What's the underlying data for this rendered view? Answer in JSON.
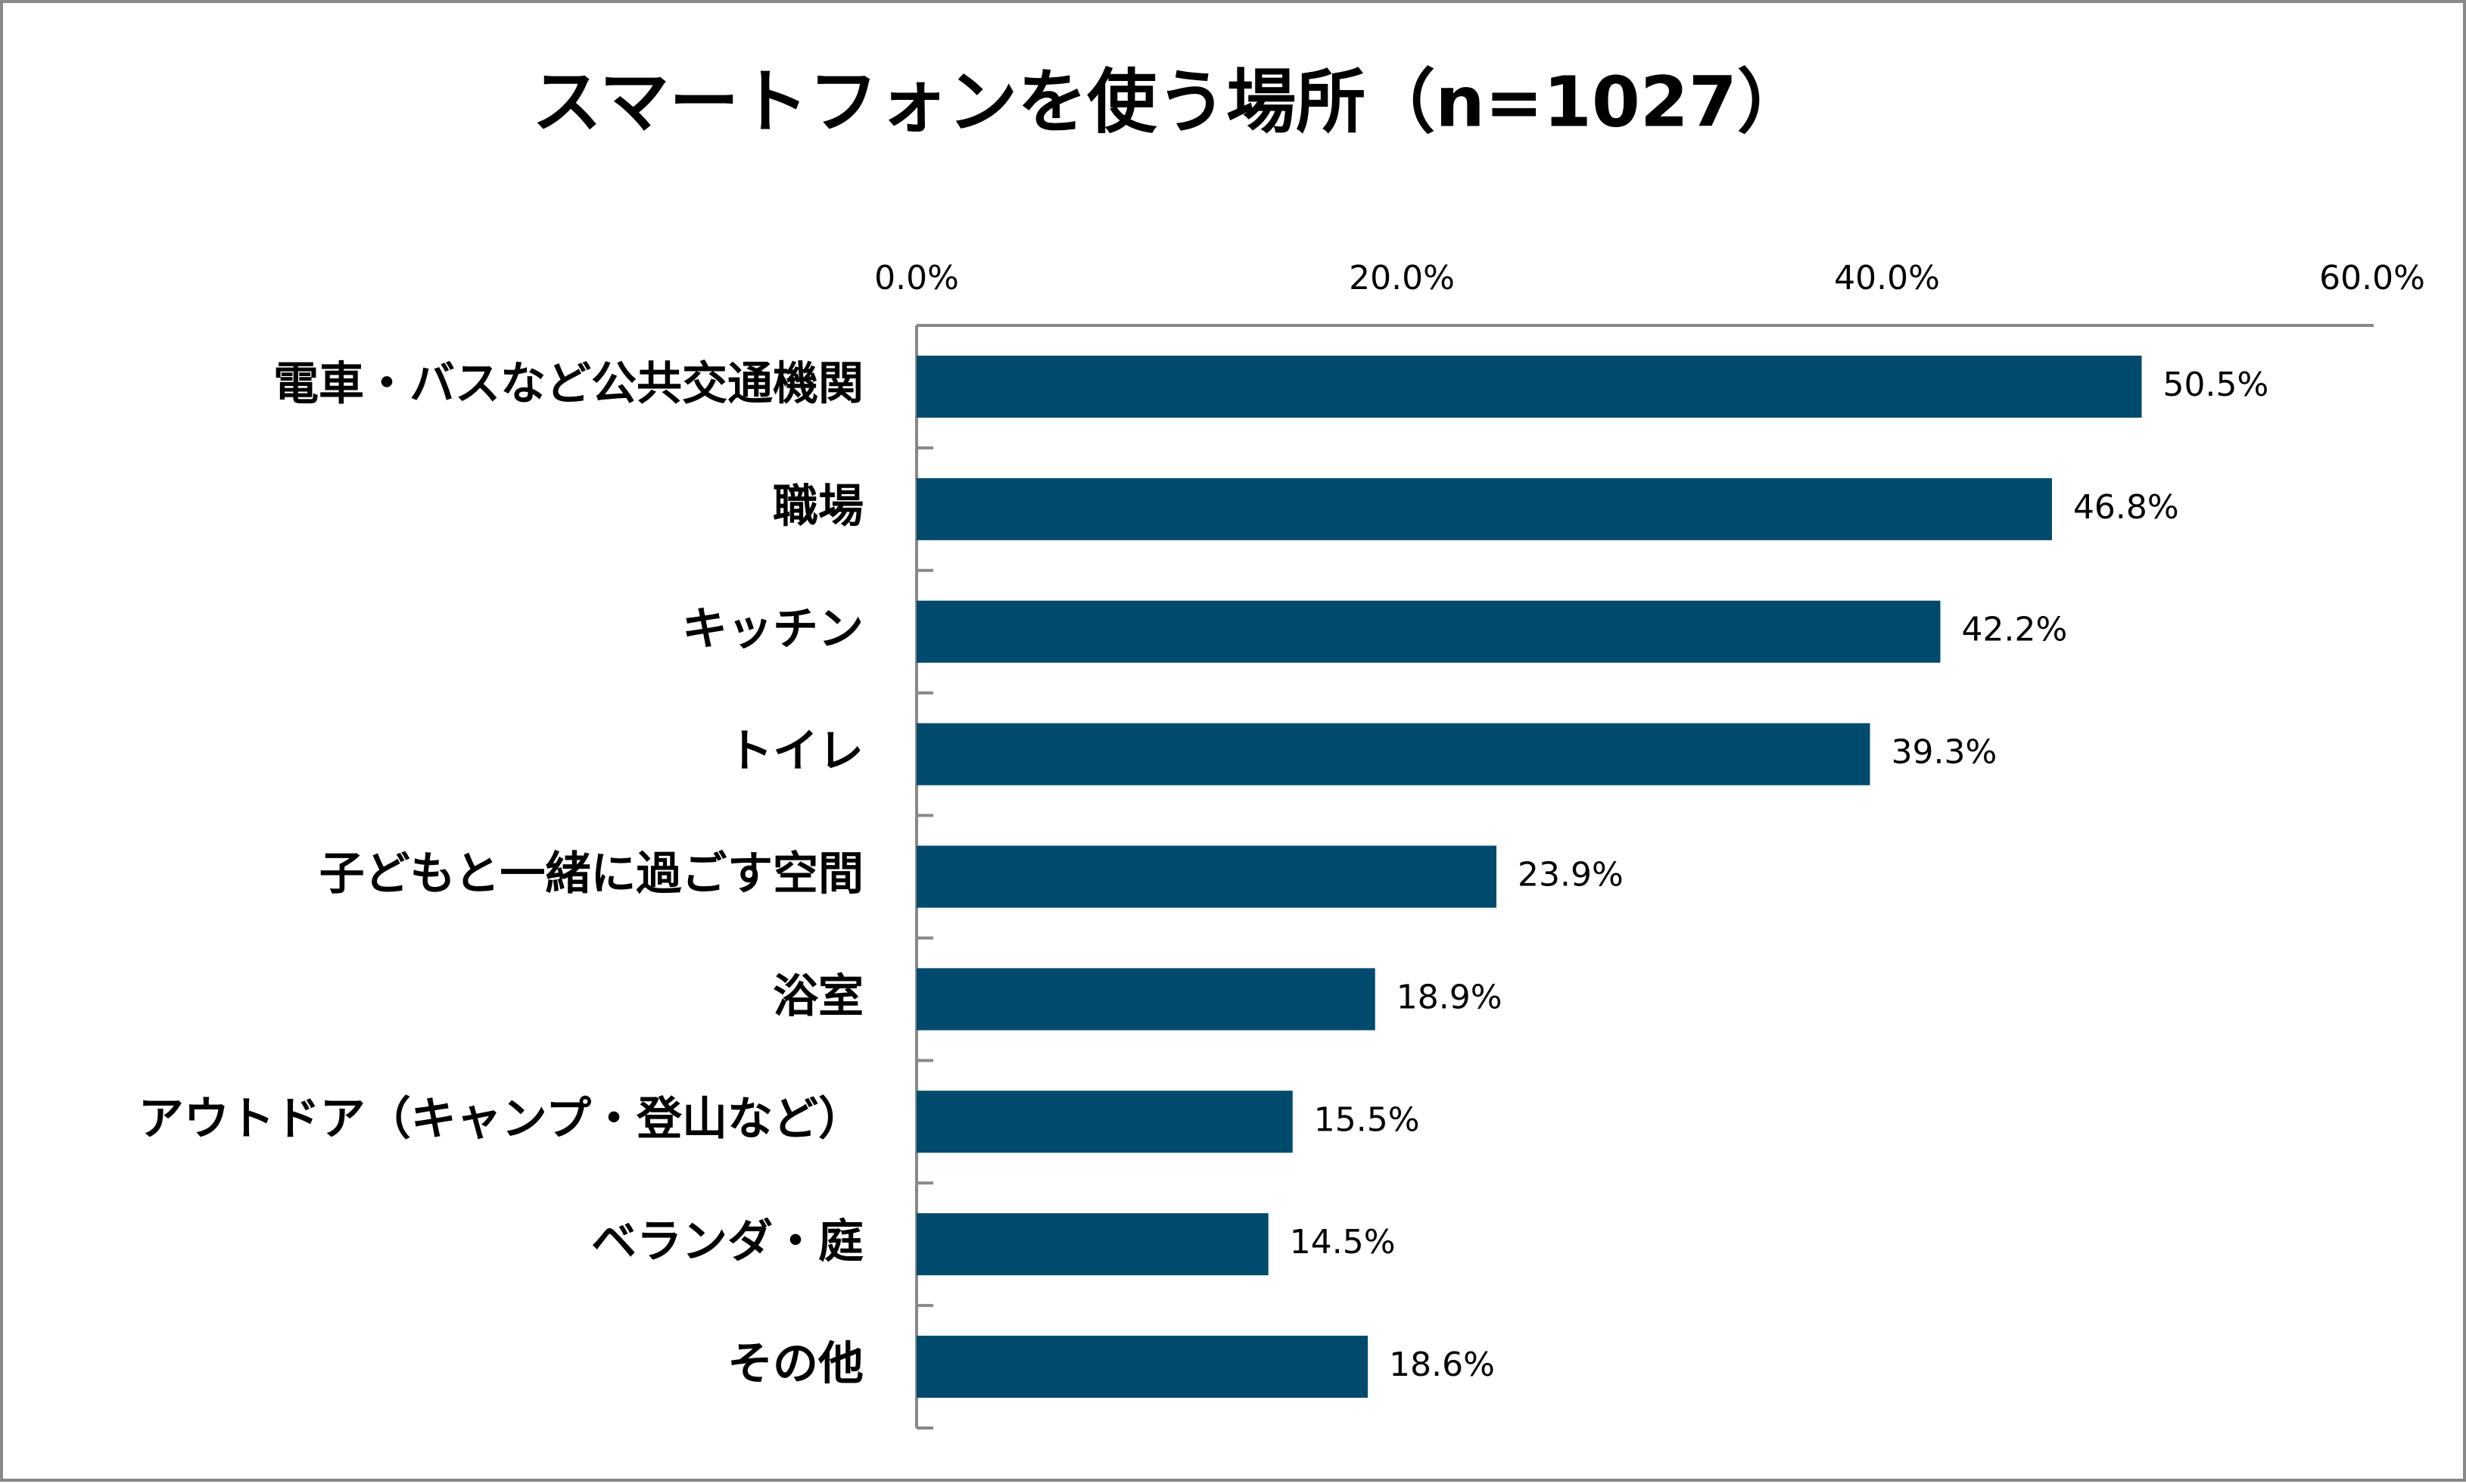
{
  "chart_data": {
    "type": "bar",
    "orientation": "horizontal",
    "title": "スマートフォンを使う場所（n=1027）",
    "categories": [
      "電車・バスなど公共交通機関",
      "職場",
      "キッチン",
      "トイレ",
      "子どもと一緒に過ごす空間",
      "浴室",
      "アウトドア（キャンプ・登山など）",
      "ベランダ・庭",
      "その他"
    ],
    "values": [
      50.5,
      46.8,
      42.2,
      39.3,
      23.9,
      18.9,
      15.5,
      14.5,
      18.6
    ],
    "value_labels": [
      "50.5%",
      "46.8%",
      "42.2%",
      "39.3%",
      "23.9%",
      "18.9%",
      "15.5%",
      "14.5%",
      "18.6%"
    ],
    "color": "#004a6e",
    "xlim": [
      0,
      60
    ],
    "xticks": [
      {
        "value": 0,
        "label": "0.0%"
      },
      {
        "value": 20,
        "label": "20.0%"
      },
      {
        "value": 40,
        "label": "40.0%"
      },
      {
        "value": 60,
        "label": "60.0%"
      }
    ],
    "grid": false
  }
}
